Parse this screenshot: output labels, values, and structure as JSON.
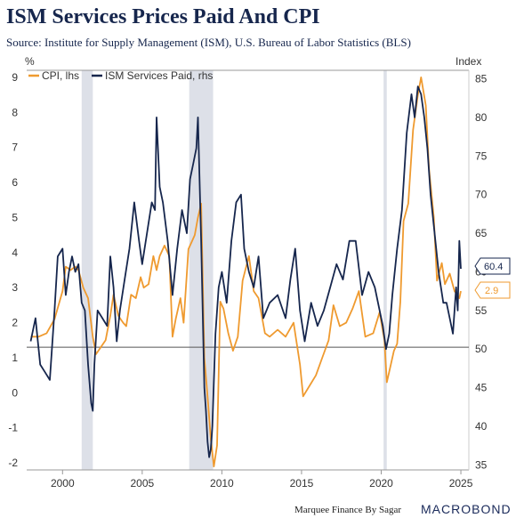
{
  "title": "ISM Services Prices Paid And CPI",
  "subtitle": "Source: Institute for Supply Management (ISM), U.S. Bureau of Labor Statistics (BLS)",
  "credit": "Marquee Finance By Sagar",
  "brand": "MACROBOND",
  "colors": {
    "cpi": "#ef9a2f",
    "ism": "#16264d",
    "recession": "#dde0e8",
    "axis": "#666666",
    "ref_line": "#555555"
  },
  "chart_data": {
    "type": "line",
    "ylabel_left": "%",
    "ylabel_right": "Index",
    "x_ticks": [
      2000,
      2005,
      2010,
      2015,
      2020,
      2025
    ],
    "y_left_ticks": [
      9,
      8,
      7,
      6,
      5,
      4,
      3,
      2,
      1,
      0,
      -1,
      -2
    ],
    "y_right_ticks": [
      85,
      80,
      75,
      70,
      65,
      60,
      55,
      50,
      45,
      40,
      35
    ],
    "ylim_left": [
      -2.2,
      9.2
    ],
    "ylim_right": [
      34.35,
      86.1
    ],
    "xlim": [
      1997.75,
      2025.5
    ],
    "grid": false,
    "legend_position": "top-left",
    "recessions": [
      [
        2001.2,
        2001.9
      ],
      [
        2007.95,
        2009.45
      ],
      [
        2020.15,
        2020.35
      ]
    ],
    "reference_line_left": 1.3,
    "series": [
      {
        "name": "CPI, lhs",
        "axis": "left",
        "last_label": "2.9",
        "x": [
          1998.0,
          1998.5,
          1999.0,
          1999.5,
          2000.0,
          2000.2,
          2000.5,
          2000.8,
          2001.0,
          2001.3,
          2001.6,
          2001.9,
          2002.1,
          2002.4,
          2002.7,
          2003.0,
          2003.2,
          2003.5,
          2003.8,
          2004.0,
          2004.3,
          2004.6,
          2004.9,
          2005.1,
          2005.4,
          2005.7,
          2005.9,
          2006.1,
          2006.4,
          2006.7,
          2006.9,
          2007.1,
          2007.4,
          2007.6,
          2007.9,
          2008.1,
          2008.3,
          2008.5,
          2008.7,
          2008.9,
          2009.1,
          2009.3,
          2009.5,
          2009.7,
          2009.9,
          2010.1,
          2010.4,
          2010.7,
          2011.0,
          2011.3,
          2011.7,
          2012.0,
          2012.3,
          2012.7,
          2013.0,
          2013.5,
          2014.0,
          2014.5,
          2014.9,
          2015.1,
          2015.5,
          2015.9,
          2016.3,
          2016.7,
          2017.0,
          2017.4,
          2017.8,
          2018.2,
          2018.6,
          2019.0,
          2019.5,
          2019.9,
          2020.2,
          2020.35,
          2020.5,
          2020.8,
          2021.0,
          2021.2,
          2021.4,
          2021.7,
          2022.0,
          2022.3,
          2022.5,
          2022.8,
          2023.0,
          2023.3,
          2023.5,
          2023.8,
          2024.0,
          2024.3,
          2024.6,
          2024.9,
          2025.0
        ],
        "y": [
          1.6,
          1.6,
          1.7,
          2.1,
          2.9,
          3.6,
          3.5,
          3.6,
          3.5,
          3.0,
          2.7,
          1.6,
          1.1,
          1.3,
          1.5,
          2.2,
          2.8,
          2.2,
          2.0,
          1.9,
          2.8,
          2.7,
          3.3,
          3.0,
          3.1,
          3.9,
          3.5,
          3.9,
          4.2,
          3.9,
          1.6,
          2.1,
          2.7,
          2.0,
          4.1,
          4.3,
          4.5,
          5.0,
          5.4,
          1.0,
          -0.1,
          -1.3,
          -2.1,
          -1.5,
          2.6,
          2.4,
          1.7,
          1.2,
          1.6,
          3.2,
          3.9,
          2.9,
          2.7,
          1.7,
          1.6,
          1.8,
          1.6,
          2.0,
          0.8,
          -0.1,
          0.2,
          0.5,
          1.0,
          1.5,
          2.5,
          1.9,
          2.0,
          2.4,
          2.9,
          1.6,
          1.7,
          2.3,
          1.5,
          0.3,
          0.6,
          1.2,
          1.4,
          2.6,
          4.9,
          5.4,
          7.5,
          8.5,
          9.0,
          8.2,
          6.4,
          5.0,
          3.2,
          3.7,
          3.1,
          3.4,
          2.9,
          2.7,
          2.9
        ]
      },
      {
        "name": "ISM Services Paid, rhs",
        "axis": "right",
        "last_label": "60.4",
        "x": [
          1998.0,
          1998.3,
          1998.6,
          1998.9,
          1999.2,
          1999.5,
          1999.7,
          2000.0,
          2000.2,
          2000.4,
          2000.6,
          2000.8,
          2001.0,
          2001.2,
          2001.4,
          2001.6,
          2001.8,
          2001.9,
          2002.0,
          2002.2,
          2002.5,
          2002.8,
          2003.0,
          2003.2,
          2003.4,
          2003.6,
          2003.9,
          2004.2,
          2004.5,
          2004.8,
          2005.0,
          2005.3,
          2005.6,
          2005.8,
          2005.9,
          2006.1,
          2006.3,
          2006.6,
          2006.9,
          2007.2,
          2007.5,
          2007.8,
          2008.0,
          2008.2,
          2008.4,
          2008.5,
          2008.7,
          2008.9,
          2009.0,
          2009.1,
          2009.2,
          2009.3,
          2009.4,
          2009.6,
          2009.8,
          2010.0,
          2010.3,
          2010.6,
          2010.9,
          2011.2,
          2011.4,
          2011.7,
          2012.0,
          2012.3,
          2012.6,
          2013.0,
          2013.5,
          2014.0,
          2014.3,
          2014.6,
          2014.9,
          2015.2,
          2015.6,
          2016.0,
          2016.4,
          2016.8,
          2017.2,
          2017.6,
          2018.0,
          2018.4,
          2018.8,
          2019.2,
          2019.6,
          2019.9,
          2020.1,
          2020.3,
          2020.5,
          2020.7,
          2021.0,
          2021.3,
          2021.6,
          2021.9,
          2022.1,
          2022.3,
          2022.5,
          2022.7,
          2022.9,
          2023.1,
          2023.3,
          2023.6,
          2023.9,
          2024.1,
          2024.3,
          2024.5,
          2024.7,
          2024.8,
          2024.9,
          2025.0
        ],
        "y": [
          51,
          54,
          48,
          47,
          46,
          55,
          62,
          63,
          57,
          60,
          62,
          60,
          61,
          56,
          55,
          48,
          43,
          42,
          48,
          55,
          54,
          53,
          62,
          58,
          51,
          55,
          59,
          63,
          69,
          64,
          61,
          65,
          69,
          68,
          80,
          71,
          69,
          64,
          57,
          63,
          68,
          65,
          72,
          74,
          76,
          80,
          64,
          45,
          42,
          38,
          36,
          37,
          40,
          52,
          58,
          60,
          56,
          64,
          69,
          70,
          63,
          60,
          58,
          62,
          54,
          56,
          57,
          54,
          59,
          63,
          55,
          51,
          56,
          53,
          55,
          58,
          61,
          59,
          64,
          64,
          57,
          60,
          58,
          55,
          53,
          50,
          52,
          57,
          63,
          68,
          78,
          83,
          80,
          84,
          83,
          80,
          76,
          70,
          66,
          60,
          56,
          56,
          54,
          52,
          58,
          55,
          64,
          60.4
        ]
      }
    ]
  }
}
